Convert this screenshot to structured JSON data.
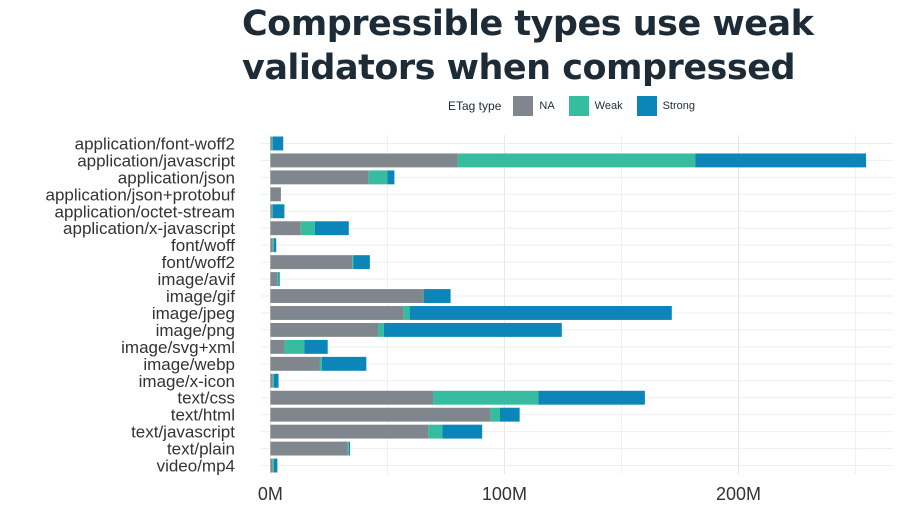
{
  "chart_data": {
    "type": "bar",
    "orientation": "horizontal",
    "stacked": true,
    "title_lines": [
      "Compressible types use weak",
      "validators when compressed"
    ],
    "legend": {
      "title": "ETag type",
      "position": "top",
      "entries": [
        {
          "name": "NA",
          "color": "#7f868d"
        },
        {
          "name": "Weak",
          "color": "#36bc9e"
        },
        {
          "name": "Strong",
          "color": "#0c85b8"
        }
      ]
    },
    "categories": [
      "application/font-woff2",
      "application/javascript",
      "application/json",
      "application/json+protobuf",
      "application/octet-stream",
      "application/x-javascript",
      "font/woff",
      "font/woff2",
      "image/avif",
      "image/gif",
      "image/jpeg",
      "image/png",
      "image/svg+xml",
      "image/webp",
      "image/x-icon",
      "text/css",
      "text/html",
      "text/javascript",
      "text/plain",
      "video/mp4"
    ],
    "series": [
      {
        "name": "NA",
        "color": "#7f868d",
        "values": [
          0.5,
          80,
          42,
          4.5,
          0.5,
          13,
          1,
          35,
          3,
          65.5,
          57,
          46,
          6,
          21,
          1,
          69.5,
          94,
          67.5,
          33,
          1
        ]
      },
      {
        "name": "Weak",
        "color": "#36bc9e",
        "values": [
          0.5,
          101.5,
          8,
          0,
          0.5,
          6,
          0.5,
          0.5,
          0.5,
          0,
          2.5,
          2.5,
          8.5,
          1,
          0.5,
          45,
          4,
          6,
          0.5,
          0.5
        ]
      },
      {
        "name": "Strong",
        "color": "#0c85b8",
        "values": [
          4.5,
          73,
          3,
          0,
          5,
          14.5,
          1,
          7,
          0.5,
          11.5,
          112,
          76,
          10,
          19,
          2,
          45.5,
          8.5,
          17,
          0.5,
          1.5
        ]
      }
    ],
    "x_axis": {
      "ticks": [
        0,
        100,
        200
      ],
      "tick_labels": [
        "0M",
        "100M",
        "200M"
      ],
      "minor_ticks": [
        50,
        150,
        250
      ],
      "range": [
        -4,
        266
      ]
    },
    "grid": true
  }
}
